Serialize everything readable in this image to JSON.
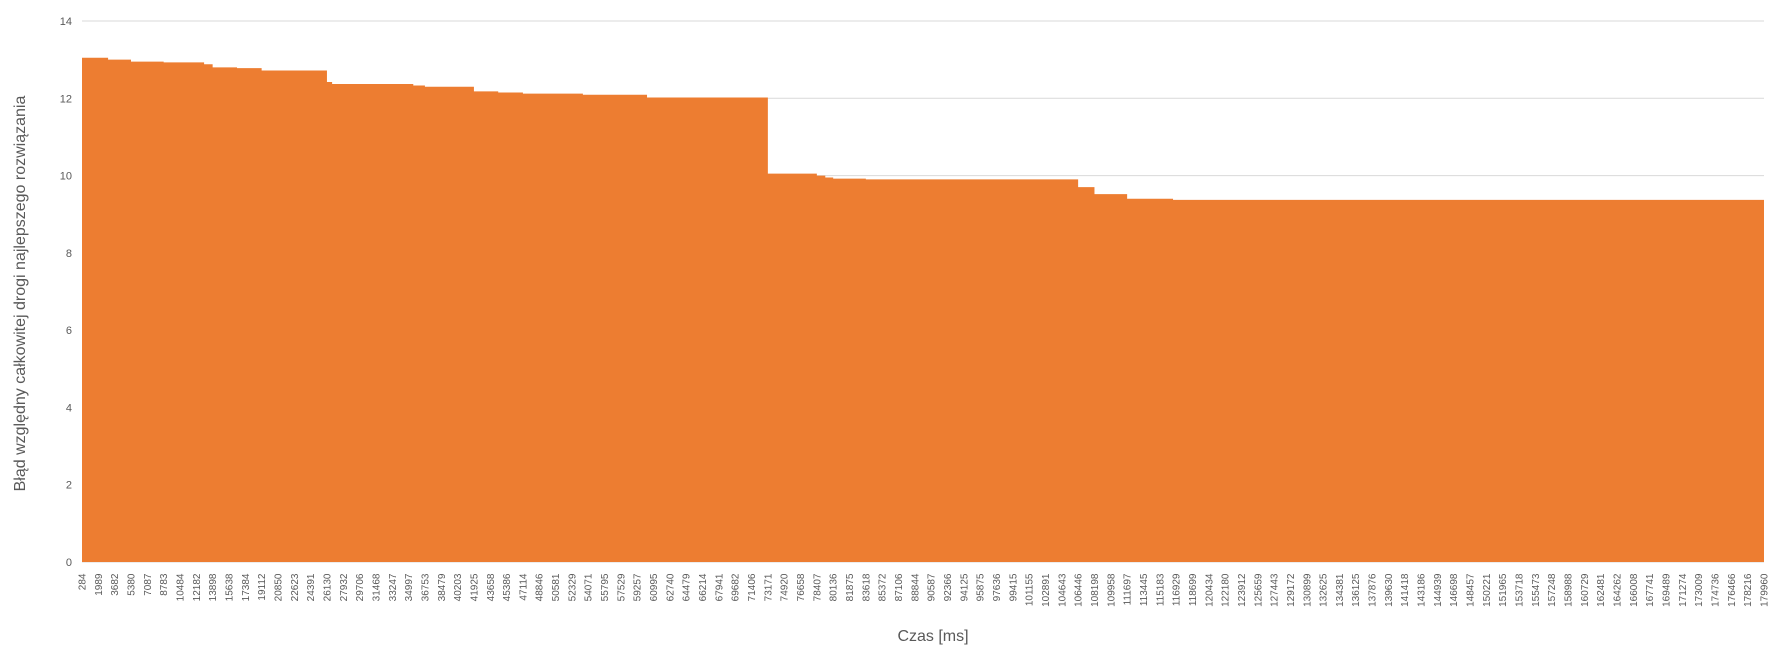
{
  "chart_data": {
    "type": "area",
    "title": "",
    "xlabel": "Czas [ms]",
    "ylabel": "Błąd względny całkowitej drogi najlepszego rozwiązania",
    "ylim": [
      0,
      14
    ],
    "yticks": [
      0,
      2,
      4,
      6,
      8,
      10,
      12,
      14
    ],
    "grid": true,
    "color": "#ED7D31",
    "xtick_labels": [
      "284",
      "1989",
      "3682",
      "5380",
      "7087",
      "8783",
      "10484",
      "12182",
      "13898",
      "15638",
      "17384",
      "19112",
      "20850",
      "22623",
      "24391",
      "26130",
      "27932",
      "29706",
      "31468",
      "33247",
      "34997",
      "36753",
      "38479",
      "40203",
      "41925",
      "43658",
      "45386",
      "47114",
      "48846",
      "50581",
      "52329",
      "54071",
      "55795",
      "57529",
      "59257",
      "60995",
      "62740",
      "64479",
      "66214",
      "67941",
      "69682",
      "71406",
      "73171",
      "74920",
      "76658",
      "78407",
      "80136",
      "81875",
      "83618",
      "85372",
      "87106",
      "88844",
      "90587",
      "92366",
      "94125",
      "95875",
      "97636",
      "99415",
      "101155",
      "102891",
      "104643",
      "106446",
      "108198",
      "109958",
      "111697",
      "113445",
      "115183",
      "116929",
      "118699",
      "120434",
      "122180",
      "123912",
      "125659",
      "127443",
      "129172",
      "130899",
      "132625",
      "134381",
      "136125",
      "137876",
      "139630",
      "141418",
      "143186",
      "144939",
      "146698",
      "148457",
      "150221",
      "151965",
      "153718",
      "155473",
      "157248",
      "158988",
      "160729",
      "162481",
      "164262",
      "166008",
      "167741",
      "169489",
      "171274",
      "173009",
      "174736",
      "176466",
      "178216",
      "179960"
    ],
    "steps": [
      {
        "x": 284,
        "y": 13.05
      },
      {
        "x": 3000,
        "y": 13.0
      },
      {
        "x": 5380,
        "y": 12.95
      },
      {
        "x": 8783,
        "y": 12.93
      },
      {
        "x": 13000,
        "y": 12.88
      },
      {
        "x": 13898,
        "y": 12.8
      },
      {
        "x": 16500,
        "y": 12.78
      },
      {
        "x": 19112,
        "y": 12.72
      },
      {
        "x": 26130,
        "y": 12.42
      },
      {
        "x": 26700,
        "y": 12.37
      },
      {
        "x": 35500,
        "y": 12.33
      },
      {
        "x": 36753,
        "y": 12.3
      },
      {
        "x": 41925,
        "y": 12.18
      },
      {
        "x": 44500,
        "y": 12.15
      },
      {
        "x": 47114,
        "y": 12.12
      },
      {
        "x": 53500,
        "y": 12.09
      },
      {
        "x": 60300,
        "y": 12.02
      },
      {
        "x": 73171,
        "y": 10.05
      },
      {
        "x": 78407,
        "y": 10.0
      },
      {
        "x": 79300,
        "y": 9.95
      },
      {
        "x": 80136,
        "y": 9.92
      },
      {
        "x": 83618,
        "y": 9.9
      },
      {
        "x": 106446,
        "y": 9.7
      },
      {
        "x": 108198,
        "y": 9.52
      },
      {
        "x": 111697,
        "y": 9.4
      },
      {
        "x": 116600,
        "y": 9.37
      }
    ],
    "x_end": 179960
  }
}
